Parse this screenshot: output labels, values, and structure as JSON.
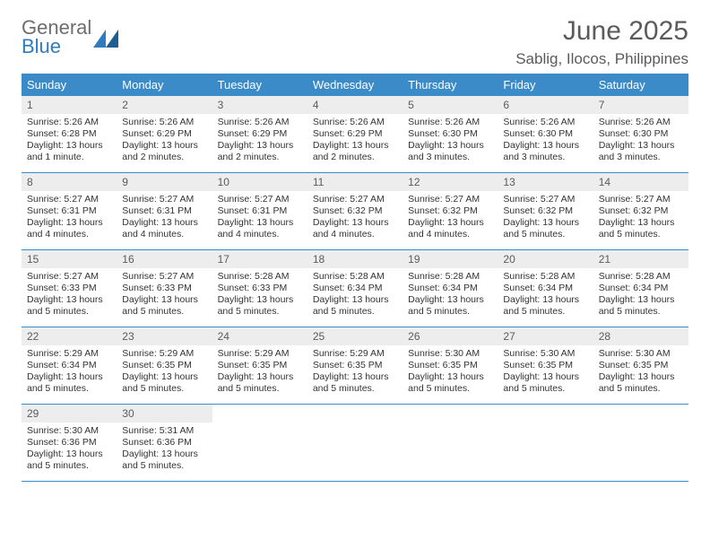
{
  "logo": {
    "general": "General",
    "blue": "Blue"
  },
  "title": "June 2025",
  "subtitle": "Sablig, Ilocos, Philippines",
  "colors": {
    "header_bg": "#3b8bc8",
    "header_text": "#ffffff",
    "daynum_bg": "#ededed",
    "text": "#333333",
    "muted": "#5b5b5b",
    "rule": "#3b8bc8"
  },
  "dow": [
    "Sunday",
    "Monday",
    "Tuesday",
    "Wednesday",
    "Thursday",
    "Friday",
    "Saturday"
  ],
  "weeks": [
    [
      {
        "n": "1",
        "sr": "5:26 AM",
        "ss": "6:28 PM",
        "dl": "13 hours and 1 minute."
      },
      {
        "n": "2",
        "sr": "5:26 AM",
        "ss": "6:29 PM",
        "dl": "13 hours and 2 minutes."
      },
      {
        "n": "3",
        "sr": "5:26 AM",
        "ss": "6:29 PM",
        "dl": "13 hours and 2 minutes."
      },
      {
        "n": "4",
        "sr": "5:26 AM",
        "ss": "6:29 PM",
        "dl": "13 hours and 2 minutes."
      },
      {
        "n": "5",
        "sr": "5:26 AM",
        "ss": "6:30 PM",
        "dl": "13 hours and 3 minutes."
      },
      {
        "n": "6",
        "sr": "5:26 AM",
        "ss": "6:30 PM",
        "dl": "13 hours and 3 minutes."
      },
      {
        "n": "7",
        "sr": "5:26 AM",
        "ss": "6:30 PM",
        "dl": "13 hours and 3 minutes."
      }
    ],
    [
      {
        "n": "8",
        "sr": "5:27 AM",
        "ss": "6:31 PM",
        "dl": "13 hours and 4 minutes."
      },
      {
        "n": "9",
        "sr": "5:27 AM",
        "ss": "6:31 PM",
        "dl": "13 hours and 4 minutes."
      },
      {
        "n": "10",
        "sr": "5:27 AM",
        "ss": "6:31 PM",
        "dl": "13 hours and 4 minutes."
      },
      {
        "n": "11",
        "sr": "5:27 AM",
        "ss": "6:32 PM",
        "dl": "13 hours and 4 minutes."
      },
      {
        "n": "12",
        "sr": "5:27 AM",
        "ss": "6:32 PM",
        "dl": "13 hours and 4 minutes."
      },
      {
        "n": "13",
        "sr": "5:27 AM",
        "ss": "6:32 PM",
        "dl": "13 hours and 5 minutes."
      },
      {
        "n": "14",
        "sr": "5:27 AM",
        "ss": "6:32 PM",
        "dl": "13 hours and 5 minutes."
      }
    ],
    [
      {
        "n": "15",
        "sr": "5:27 AM",
        "ss": "6:33 PM",
        "dl": "13 hours and 5 minutes."
      },
      {
        "n": "16",
        "sr": "5:27 AM",
        "ss": "6:33 PM",
        "dl": "13 hours and 5 minutes."
      },
      {
        "n": "17",
        "sr": "5:28 AM",
        "ss": "6:33 PM",
        "dl": "13 hours and 5 minutes."
      },
      {
        "n": "18",
        "sr": "5:28 AM",
        "ss": "6:34 PM",
        "dl": "13 hours and 5 minutes."
      },
      {
        "n": "19",
        "sr": "5:28 AM",
        "ss": "6:34 PM",
        "dl": "13 hours and 5 minutes."
      },
      {
        "n": "20",
        "sr": "5:28 AM",
        "ss": "6:34 PM",
        "dl": "13 hours and 5 minutes."
      },
      {
        "n": "21",
        "sr": "5:28 AM",
        "ss": "6:34 PM",
        "dl": "13 hours and 5 minutes."
      }
    ],
    [
      {
        "n": "22",
        "sr": "5:29 AM",
        "ss": "6:34 PM",
        "dl": "13 hours and 5 minutes."
      },
      {
        "n": "23",
        "sr": "5:29 AM",
        "ss": "6:35 PM",
        "dl": "13 hours and 5 minutes."
      },
      {
        "n": "24",
        "sr": "5:29 AM",
        "ss": "6:35 PM",
        "dl": "13 hours and 5 minutes."
      },
      {
        "n": "25",
        "sr": "5:29 AM",
        "ss": "6:35 PM",
        "dl": "13 hours and 5 minutes."
      },
      {
        "n": "26",
        "sr": "5:30 AM",
        "ss": "6:35 PM",
        "dl": "13 hours and 5 minutes."
      },
      {
        "n": "27",
        "sr": "5:30 AM",
        "ss": "6:35 PM",
        "dl": "13 hours and 5 minutes."
      },
      {
        "n": "28",
        "sr": "5:30 AM",
        "ss": "6:35 PM",
        "dl": "13 hours and 5 minutes."
      }
    ],
    [
      {
        "n": "29",
        "sr": "5:30 AM",
        "ss": "6:36 PM",
        "dl": "13 hours and 5 minutes."
      },
      {
        "n": "30",
        "sr": "5:31 AM",
        "ss": "6:36 PM",
        "dl": "13 hours and 5 minutes."
      },
      null,
      null,
      null,
      null,
      null
    ]
  ],
  "labels": {
    "sr": "Sunrise: ",
    "ss": "Sunset: ",
    "dl": "Daylight: "
  }
}
